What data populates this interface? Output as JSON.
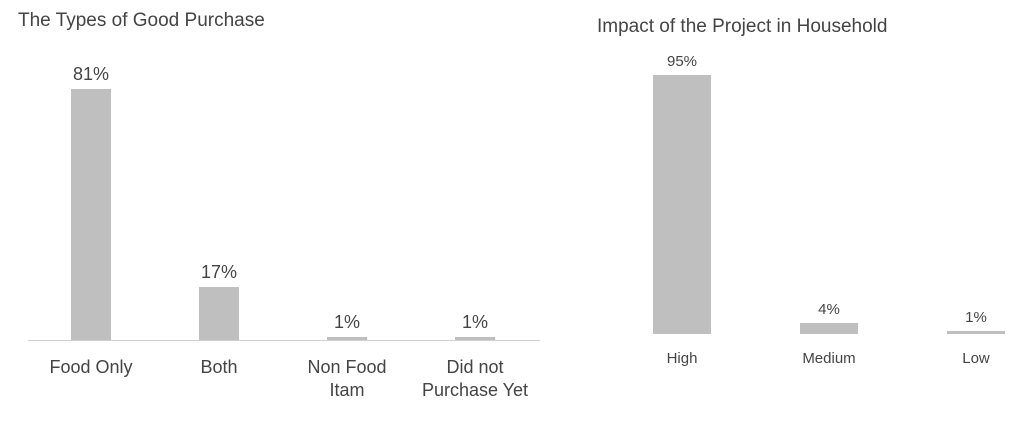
{
  "chart_data": [
    {
      "type": "bar",
      "title": "The Types of Good Purchase",
      "categories": [
        "Food Only",
        "Both",
        "Non Food Itam",
        "Did not Purchase Yet"
      ],
      "values": [
        81,
        17,
        1,
        1
      ],
      "value_labels": [
        "81%",
        "17%",
        "1%",
        "1%"
      ],
      "color": "#bfbfbf"
    },
    {
      "type": "bar",
      "title": "Impact of the Project in Household",
      "categories": [
        "High",
        "Medium",
        "Low"
      ],
      "values": [
        95,
        4,
        1
      ],
      "value_labels": [
        "95%",
        "4%",
        "1%"
      ],
      "color": "#bfbfbf"
    }
  ]
}
